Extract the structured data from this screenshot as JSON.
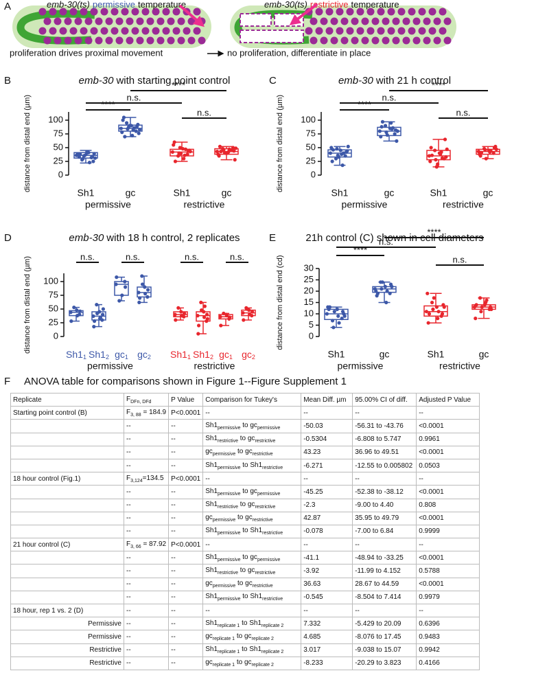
{
  "panel_labels": [
    "A",
    "B",
    "C",
    "D",
    "E",
    "F"
  ],
  "schematic": [
    {
      "title_italic": "emb-30(ts)",
      "title_highlight": "permissive",
      "title_rest": "temperature",
      "highlight_color": "#3d58a8",
      "caption": "proliferation drives proximal movement"
    },
    {
      "title_italic": "emb-30(ts)",
      "title_highlight": "restrictive",
      "title_rest": "temperature",
      "highlight_color": "#e8262d",
      "caption": "no proliferation, differentiate in place"
    }
  ],
  "chart_data": [
    {
      "type": "box",
      "title_italic": "emb-30",
      "title": "with starting point control",
      "ylabel": "distance from distal end (µm)",
      "categories": [
        "Sh1",
        "gc",
        "Sh1",
        "gc"
      ],
      "groups": [
        {
          "name": "permissive",
          "color": "#3d58a8"
        },
        {
          "name": "restrictive",
          "color": "#e8262d"
        }
      ],
      "ylim": [
        0,
        115
      ],
      "yticks": [
        0,
        25,
        50,
        75,
        100
      ],
      "boxes": [
        {
          "min": 22,
          "q1": 31,
          "median": 36,
          "q3": 41,
          "max": 45,
          "points": [
            36,
            32,
            40,
            28,
            38,
            34,
            42,
            30,
            37,
            25,
            41,
            35,
            33,
            39,
            23,
            36,
            38,
            31
          ]
        },
        {
          "min": 70,
          "q1": 80,
          "median": 85,
          "q3": 91,
          "max": 105,
          "points": [
            85,
            80,
            90,
            95,
            78,
            88,
            72,
            84,
            100,
            92,
            82,
            87,
            105,
            76,
            86,
            90,
            70,
            83
          ]
        },
        {
          "min": 25,
          "q1": 35,
          "median": 42,
          "q3": 47,
          "max": 60,
          "points": [
            42,
            38,
            48,
            35,
            55,
            44,
            30,
            40,
            60,
            45,
            36,
            50,
            25,
            43,
            47,
            39
          ]
        },
        {
          "min": 28,
          "q1": 38,
          "median": 43,
          "q3": 48,
          "max": 52,
          "points": [
            43,
            45,
            40,
            48,
            38,
            50,
            42,
            46,
            35,
            44,
            47,
            41,
            52,
            28,
            45,
            40,
            43,
            49
          ]
        }
      ],
      "comparison_labels": [
        "****",
        "n.s.",
        "n.s.",
        "****"
      ]
    },
    {
      "type": "box",
      "title_italic": "emb-30",
      "title": "with 21 h control",
      "ylabel": "distance from distal end (µm)",
      "categories": [
        "Sh1",
        "gc",
        "Sh1",
        "gc"
      ],
      "groups": [
        {
          "name": "permissive",
          "color": "#3d58a8"
        },
        {
          "name": "restrictive",
          "color": "#e8262d"
        }
      ],
      "ylim": [
        0,
        115
      ],
      "yticks": [
        0,
        25,
        50,
        75,
        100
      ],
      "boxes": [
        {
          "min": 18,
          "q1": 33,
          "median": 40,
          "q3": 46,
          "max": 52,
          "points": [
            40,
            35,
            45,
            30,
            50,
            42,
            38,
            48,
            25,
            44,
            18,
            36,
            46,
            52,
            40,
            33
          ]
        },
        {
          "min": 62,
          "q1": 72,
          "median": 80,
          "q3": 87,
          "max": 97,
          "points": [
            80,
            75,
            85,
            90,
            70,
            82,
            95,
            78,
            88,
            62,
            84,
            73,
            97,
            80,
            86
          ]
        },
        {
          "min": 15,
          "q1": 28,
          "median": 35,
          "q3": 45,
          "max": 65,
          "points": [
            35,
            30,
            40,
            45,
            25,
            65,
            38,
            28,
            50,
            33,
            42,
            15,
            36,
            47,
            31,
            20
          ]
        },
        {
          "min": 30,
          "q1": 38,
          "median": 43,
          "q3": 47,
          "max": 52,
          "points": [
            43,
            40,
            45,
            48,
            38,
            50,
            42,
            46,
            35,
            52,
            44,
            30,
            41,
            47
          ]
        }
      ],
      "comparison_labels": [
        "****",
        "n.s.",
        "n.s.",
        "****"
      ]
    },
    {
      "type": "box",
      "title_italic": "emb-30",
      "title": "with 18 h control, 2 replicates",
      "ylabel": "distance from distal end (µm)",
      "categories": [
        [
          "Sh1",
          "1"
        ],
        [
          "Sh1",
          "2"
        ],
        [
          "gc",
          "1"
        ],
        [
          "gc",
          "2"
        ],
        [
          "Sh1",
          "1"
        ],
        [
          "Sh1",
          "2"
        ],
        [
          "gc",
          "1"
        ],
        [
          "gc",
          "2"
        ]
      ],
      "groups": [
        {
          "name": "permissive",
          "color": "#3d58a8"
        },
        {
          "name": "restrictive",
          "color": "#e8262d"
        }
      ],
      "ylim": [
        0,
        115
      ],
      "yticks": [
        0,
        25,
        50,
        75,
        100
      ],
      "boxes": [
        {
          "min": 28,
          "q1": 38,
          "median": 44,
          "q3": 47,
          "max": 53,
          "points": [
            44,
            40,
            48,
            53,
            28,
            46,
            38
          ]
        },
        {
          "min": 18,
          "q1": 30,
          "median": 37,
          "q3": 45,
          "max": 58,
          "points": [
            37,
            30,
            45,
            58,
            18,
            40,
            33,
            42,
            28,
            50,
            35
          ]
        },
        {
          "min": 65,
          "q1": 75,
          "median": 95,
          "q3": 100,
          "max": 108,
          "points": [
            95,
            100,
            75,
            65,
            108,
            90
          ]
        },
        {
          "min": 62,
          "q1": 72,
          "median": 80,
          "q3": 90,
          "max": 110,
          "points": [
            80,
            72,
            90,
            110,
            62,
            85,
            78,
            95,
            70
          ]
        },
        {
          "min": 30,
          "q1": 36,
          "median": 40,
          "q3": 45,
          "max": 52,
          "points": [
            40,
            36,
            45,
            52,
            30,
            42,
            38
          ]
        },
        {
          "min": 5,
          "q1": 28,
          "median": 38,
          "q3": 45,
          "max": 62,
          "points": [
            38,
            28,
            45,
            62,
            5,
            40,
            35,
            48,
            20,
            32,
            55
          ]
        },
        {
          "min": 20,
          "q1": 32,
          "median": 36,
          "q3": 40,
          "max": 42,
          "points": [
            36,
            32,
            40,
            42,
            20,
            35,
            38
          ]
        },
        {
          "min": 30,
          "q1": 38,
          "median": 43,
          "q3": 48,
          "max": 52,
          "points": [
            43,
            38,
            48,
            52,
            30,
            45,
            40,
            50
          ]
        }
      ],
      "comparison_labels": [
        "n.s.",
        "n.s.",
        "n.s.",
        "n.s."
      ]
    },
    {
      "type": "box",
      "title": "21h control (C) shown in cell diameters",
      "ylabel": "distance from distal end (cd)",
      "categories": [
        "Sh1",
        "gc",
        "Sh1",
        "gc"
      ],
      "groups": [
        {
          "name": "permissive",
          "color": "#3d58a8"
        },
        {
          "name": "restrictive",
          "color": "#e8262d"
        }
      ],
      "ylim": [
        0,
        30
      ],
      "yticks": [
        0,
        5,
        10,
        15,
        20,
        25,
        30
      ],
      "boxes": [
        {
          "min": 4,
          "q1": 7.5,
          "median": 10,
          "q3": 12,
          "max": 13,
          "points": [
            10,
            8,
            12,
            7,
            13,
            11,
            9,
            4,
            12,
            10,
            6,
            11,
            13,
            9
          ]
        },
        {
          "min": 15,
          "q1": 19.5,
          "median": 21,
          "q3": 22,
          "max": 24,
          "points": [
            21,
            19,
            22,
            24,
            20,
            23,
            15,
            21,
            18,
            22,
            20,
            24,
            19
          ]
        },
        {
          "min": 6,
          "q1": 9,
          "median": 11,
          "q3": 13.5,
          "max": 19,
          "points": [
            11,
            9,
            13,
            15,
            19,
            10,
            8,
            12,
            6,
            14,
            11,
            17,
            10,
            13
          ]
        },
        {
          "min": 8,
          "q1": 12,
          "median": 13,
          "q3": 14,
          "max": 17,
          "points": [
            13,
            12,
            14,
            17,
            8,
            13,
            15,
            11,
            14,
            12,
            16,
            13
          ]
        }
      ],
      "comparison_labels": [
        "****",
        "n.s.",
        "n.s.",
        "****"
      ]
    }
  ],
  "table": {
    "title": "ANOVA table for comparisons shown in Figure 1--Figure Supplement 1",
    "header": [
      "Replicate",
      [
        "F",
        "DFn, DFd"
      ],
      "P Value",
      "Comparison for Tukey's",
      "Mean Diff. µm",
      "95.00% CI of diff.",
      "Adjusted P Value"
    ],
    "rows": [
      [
        "Starting point control (B)",
        [
          "F",
          "3, 88",
          " = 184.9"
        ],
        "P<0.0001",
        "--",
        "--",
        "--",
        "--"
      ],
      [
        null,
        "--",
        "--",
        [
          "Sh1",
          "permissive",
          " to gc",
          "permissive"
        ],
        "-50.03",
        "-56.31 to -43.76",
        "<0.0001"
      ],
      [
        null,
        "--",
        "--",
        [
          "Sh1",
          "restrictive",
          " to gc",
          "restrictive"
        ],
        "-0.5304",
        "-6.808 to 5.747",
        "0.9961"
      ],
      [
        null,
        "--",
        "--",
        [
          "gc",
          "permissive",
          " to gc",
          "restrictive"
        ],
        "43.23",
        "36.96 to 49.51",
        "<0.0001"
      ],
      [
        null,
        "--",
        "--",
        [
          "Sh1",
          "permissive",
          " to Sh1",
          "restrictive"
        ],
        "-6.271",
        "-12.55 to 0.005802",
        "0.0503"
      ],
      [
        "18 hour control (Fig.1)",
        [
          "F",
          "3,124",
          "=134.5"
        ],
        "P<0.0001",
        "--",
        "--",
        "--",
        "--"
      ],
      [
        null,
        "--",
        "--",
        [
          "Sh1",
          "permissive",
          " to gc",
          "permissive"
        ],
        "-45.25",
        "-52.38 to -38.12",
        "<0.0001"
      ],
      [
        null,
        "--",
        "--",
        [
          "Sh1",
          "restrictive",
          " to gc",
          "restrictive"
        ],
        "-2.3",
        "-9.00 to 4.40",
        "0.808"
      ],
      [
        null,
        "--",
        "--",
        [
          "gc",
          "permissive",
          " to gc",
          "restrictive"
        ],
        "42.87",
        "35.95 to 49.79",
        "<0.0001"
      ],
      [
        null,
        "--",
        "--",
        [
          "Sh1",
          "permissive",
          " to Sh1",
          "restrictive"
        ],
        "-0.078",
        "-7.00 to 6.84",
        "0.9999"
      ],
      [
        "21 hour control (C)",
        [
          "F",
          "3, 66",
          " = 87.92"
        ],
        "P<0.0001",
        "--",
        "--",
        "--",
        "--"
      ],
      [
        null,
        "--",
        "--",
        [
          "Sh1",
          "permissive",
          " to gc",
          "permissive"
        ],
        "-41.1",
        "-48.94 to -33.25",
        "<0.0001"
      ],
      [
        null,
        "--",
        "--",
        [
          "Sh1",
          "restrictive",
          " to gc",
          "restrictive"
        ],
        "-3.92",
        "-11.99 to 4.152",
        "0.5788"
      ],
      [
        null,
        "--",
        "--",
        [
          "gc",
          "permissive",
          " to gc",
          "restrictive"
        ],
        "36.63",
        "28.67 to 44.59",
        "<0.0001"
      ],
      [
        null,
        "--",
        "--",
        [
          "Sh1",
          "permissive",
          " to Sh1",
          "restrictive"
        ],
        "-0.545",
        "-8.504 to 7.414",
        "0.9979"
      ],
      [
        "18 hour, rep 1 vs. 2 (D)",
        "--",
        "--",
        "--",
        "--",
        "--",
        "--"
      ],
      [
        "Permissive",
        "--",
        "--",
        [
          "Sh1",
          "replicate 1",
          " to Sh1",
          "replicate 2"
        ],
        "7.332",
        "-5.429 to 20.09",
        "0.6396"
      ],
      [
        "Permissive",
        "--",
        "--",
        [
          "gc",
          "replicate 1",
          " to gc",
          "replicate 2"
        ],
        "4.685",
        "-8.076 to 17.45",
        "0.9483"
      ],
      [
        "Restrictive",
        "--",
        "--",
        [
          "Sh1",
          "replicate 1",
          " to Sh1",
          "replicate 2"
        ],
        "3.017",
        "-9.038 to 15.07",
        "0.9942"
      ],
      [
        "Restrictive",
        "--",
        "--",
        [
          "gc",
          "replicate 1",
          " to gc",
          "replicate 2"
        ],
        "-8.233",
        "-20.29 to 3.823",
        "0.4166"
      ]
    ]
  }
}
